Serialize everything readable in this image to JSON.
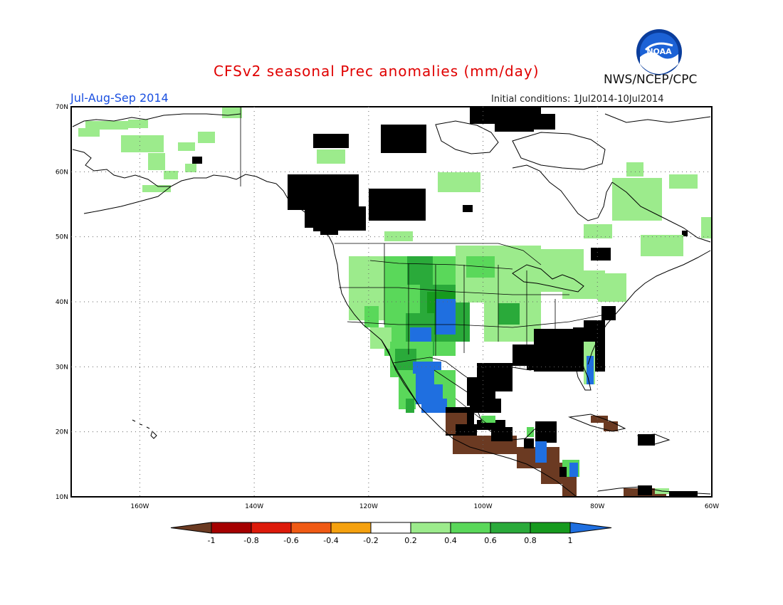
{
  "header": {
    "title": "CFSv2 seasonal Prec anomalies (mm/day)",
    "period": "Jul-Aug-Sep 2014",
    "initial_conditions": "Initial conditions: 1Jul2014-10Jul2014",
    "agency": "NWS/NCEP/CPC",
    "logo_text": "NOAA"
  },
  "map": {
    "lon_range": [
      -172,
      -60
    ],
    "lat_range": [
      10,
      70
    ],
    "lat_ticks": [
      "70N",
      "60N",
      "50N",
      "40N",
      "30N",
      "20N",
      "10N"
    ],
    "lon_ticks": [
      "160W",
      "140W",
      "120W",
      "100W",
      "80W",
      "60W"
    ],
    "grid": true
  },
  "colorbar": {
    "labels": [
      "-1",
      "-0.8",
      "-0.6",
      "-0.4",
      "-0.2",
      "0.2",
      "0.4",
      "0.6",
      "0.8",
      "1"
    ],
    "colors": {
      "lt_neg1": "#6b3a22",
      "neg1_neg08": "#a50000",
      "neg08_neg06": "#dd1a0a",
      "neg06_neg04": "#f05a14",
      "neg04_neg02": "#f5a10f",
      "neutral": "#ffffff",
      "pos02_04": "#9ceb8c",
      "pos04_06": "#5ad85a",
      "pos06_08": "#2aaa3a",
      "pos08_1": "#169a1e",
      "gt1": "#1f6fe0"
    }
  }
}
